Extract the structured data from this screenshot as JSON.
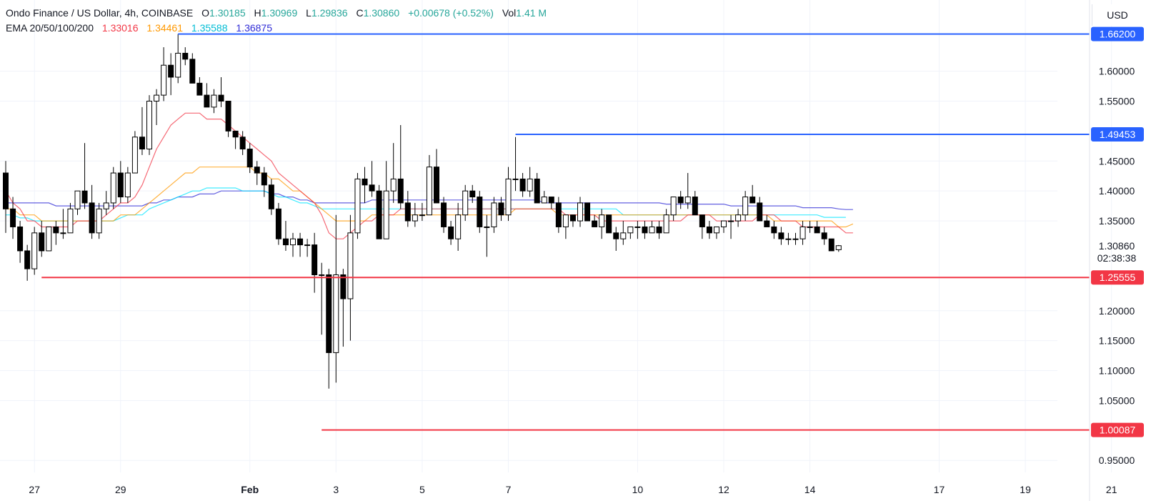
{
  "header": {
    "symbol": "Ondo Finance / US Dollar, 4h, COINBASE",
    "open_key": "O",
    "open": "1.30185",
    "high_key": "H",
    "high": "1.30969",
    "low_key": "L",
    "low": "1.29836",
    "close_key": "C",
    "close": "1.30860",
    "change": "+0.00678 (+0.52%)",
    "vol_key": "Vol",
    "vol": "1.41 M",
    "ema_label": "EMA 20/50/100/200",
    "ema_values": [
      "1.33016",
      "1.34461",
      "1.35588",
      "1.36875"
    ]
  },
  "currency": "USD",
  "colors": {
    "up": "#ffffff",
    "down": "#000000",
    "wick": "#000000",
    "ema20": "#f23645",
    "ema50": "#ff9800",
    "ema100": "#00e5ff",
    "ema200": "#2f2bd6",
    "level_blue": "#2962ff",
    "level_red": "#f23645"
  },
  "chart_data": {
    "type": "candlestick",
    "title": "Ondo Finance / US Dollar, 4h, COINBASE",
    "ylim": [
      0.93,
      1.695
    ],
    "y_ticks": [
      "1.60000",
      "1.55000",
      "1.45000",
      "1.40000",
      "1.35000",
      "1.20000",
      "1.15000",
      "1.10000",
      "1.05000",
      "0.95000"
    ],
    "y_tick_values": [
      1.6,
      1.55,
      1.45,
      1.4,
      1.35,
      1.2,
      1.15,
      1.1,
      1.05,
      0.95
    ],
    "x_ticks": [
      {
        "label": "27",
        "bar": 4
      },
      {
        "label": "29",
        "bar": 16
      },
      {
        "label": "Feb",
        "bar": 34
      },
      {
        "label": "3",
        "bar": 46
      },
      {
        "label": "5",
        "bar": 58
      },
      {
        "label": "7",
        "bar": 70
      },
      {
        "label": "10",
        "bar": 88
      },
      {
        "label": "12",
        "bar": 100
      },
      {
        "label": "14",
        "bar": 112
      },
      {
        "label": "17",
        "bar": 130
      },
      {
        "label": "19",
        "bar": 142
      },
      {
        "label": "21",
        "bar": 154
      }
    ],
    "bars_total": 162,
    "last_price": "1.30860",
    "countdown": "02:38:38",
    "candles": [
      [
        1.43,
        1.45,
        1.33,
        1.37
      ],
      [
        1.37,
        1.39,
        1.32,
        1.34
      ],
      [
        1.34,
        1.35,
        1.28,
        1.3
      ],
      [
        1.3,
        1.31,
        1.25,
        1.27
      ],
      [
        1.27,
        1.34,
        1.26,
        1.33
      ],
      [
        1.33,
        1.35,
        1.29,
        1.3
      ],
      [
        1.3,
        1.34,
        1.3,
        1.34
      ],
      [
        1.34,
        1.35,
        1.31,
        1.33
      ],
      [
        1.33,
        1.37,
        1.32,
        1.33
      ],
      [
        1.33,
        1.38,
        1.33,
        1.37
      ],
      [
        1.37,
        1.4,
        1.36,
        1.4
      ],
      [
        1.4,
        1.48,
        1.37,
        1.38
      ],
      [
        1.38,
        1.41,
        1.32,
        1.33
      ],
      [
        1.33,
        1.38,
        1.32,
        1.37
      ],
      [
        1.37,
        1.4,
        1.36,
        1.38
      ],
      [
        1.38,
        1.44,
        1.37,
        1.43
      ],
      [
        1.43,
        1.45,
        1.38,
        1.39
      ],
      [
        1.39,
        1.44,
        1.38,
        1.43
      ],
      [
        1.43,
        1.5,
        1.43,
        1.49
      ],
      [
        1.49,
        1.54,
        1.46,
        1.47
      ],
      [
        1.47,
        1.56,
        1.46,
        1.55
      ],
      [
        1.55,
        1.57,
        1.51,
        1.56
      ],
      [
        1.56,
        1.64,
        1.55,
        1.61
      ],
      [
        1.61,
        1.63,
        1.56,
        1.59
      ],
      [
        1.59,
        1.662,
        1.58,
        1.63
      ],
      [
        1.63,
        1.64,
        1.61,
        1.62
      ],
      [
        1.62,
        1.63,
        1.58,
        1.58
      ],
      [
        1.58,
        1.59,
        1.56,
        1.56
      ],
      [
        1.56,
        1.58,
        1.54,
        1.54
      ],
      [
        1.54,
        1.57,
        1.53,
        1.56
      ],
      [
        1.56,
        1.59,
        1.54,
        1.55
      ],
      [
        1.55,
        1.55,
        1.49,
        1.5
      ],
      [
        1.5,
        1.5,
        1.47,
        1.49
      ],
      [
        1.49,
        1.5,
        1.46,
        1.47
      ],
      [
        1.47,
        1.48,
        1.43,
        1.44
      ],
      [
        1.44,
        1.45,
        1.41,
        1.43
      ],
      [
        1.43,
        1.44,
        1.39,
        1.41
      ],
      [
        1.41,
        1.42,
        1.36,
        1.37
      ],
      [
        1.37,
        1.38,
        1.31,
        1.32
      ],
      [
        1.32,
        1.35,
        1.3,
        1.31
      ],
      [
        1.31,
        1.33,
        1.29,
        1.32
      ],
      [
        1.32,
        1.33,
        1.29,
        1.31
      ],
      [
        1.31,
        1.32,
        1.29,
        1.31
      ],
      [
        1.31,
        1.33,
        1.23,
        1.26
      ],
      [
        1.26,
        1.28,
        1.16,
        1.26
      ],
      [
        1.26,
        1.27,
        1.07,
        1.13
      ],
      [
        1.13,
        1.36,
        1.08,
        1.26
      ],
      [
        1.26,
        1.27,
        1.14,
        1.22
      ],
      [
        1.22,
        1.36,
        1.15,
        1.33
      ],
      [
        1.33,
        1.43,
        1.32,
        1.42
      ],
      [
        1.42,
        1.44,
        1.38,
        1.41
      ],
      [
        1.41,
        1.45,
        1.39,
        1.4
      ],
      [
        1.4,
        1.41,
        1.32,
        1.32
      ],
      [
        1.32,
        1.45,
        1.32,
        1.4
      ],
      [
        1.4,
        1.48,
        1.38,
        1.42
      ],
      [
        1.42,
        1.51,
        1.37,
        1.38
      ],
      [
        1.38,
        1.4,
        1.34,
        1.35
      ],
      [
        1.35,
        1.38,
        1.34,
        1.36
      ],
      [
        1.36,
        1.38,
        1.35,
        1.36
      ],
      [
        1.36,
        1.46,
        1.36,
        1.44
      ],
      [
        1.44,
        1.47,
        1.38,
        1.38
      ],
      [
        1.38,
        1.39,
        1.33,
        1.34
      ],
      [
        1.34,
        1.35,
        1.31,
        1.32
      ],
      [
        1.32,
        1.38,
        1.3,
        1.36
      ],
      [
        1.36,
        1.41,
        1.35,
        1.4
      ],
      [
        1.4,
        1.41,
        1.38,
        1.39
      ],
      [
        1.39,
        1.4,
        1.33,
        1.34
      ],
      [
        1.34,
        1.36,
        1.29,
        1.34
      ],
      [
        1.34,
        1.39,
        1.33,
        1.38
      ],
      [
        1.38,
        1.39,
        1.35,
        1.36
      ],
      [
        1.36,
        1.44,
        1.35,
        1.42
      ],
      [
        1.42,
        1.49,
        1.4,
        1.42
      ],
      [
        1.42,
        1.43,
        1.39,
        1.4
      ],
      [
        1.4,
        1.44,
        1.39,
        1.42
      ],
      [
        1.42,
        1.43,
        1.38,
        1.38
      ],
      [
        1.38,
        1.4,
        1.38,
        1.39
      ],
      [
        1.39,
        1.39,
        1.37,
        1.38
      ],
      [
        1.38,
        1.39,
        1.33,
        1.34
      ],
      [
        1.34,
        1.36,
        1.32,
        1.36
      ],
      [
        1.36,
        1.36,
        1.34,
        1.35
      ],
      [
        1.35,
        1.39,
        1.34,
        1.38
      ],
      [
        1.38,
        1.38,
        1.35,
        1.35
      ],
      [
        1.35,
        1.36,
        1.34,
        1.34
      ],
      [
        1.34,
        1.37,
        1.32,
        1.36
      ],
      [
        1.36,
        1.36,
        1.33,
        1.33
      ],
      [
        1.33,
        1.34,
        1.3,
        1.32
      ],
      [
        1.32,
        1.35,
        1.31,
        1.33
      ],
      [
        1.33,
        1.34,
        1.32,
        1.34
      ],
      [
        1.34,
        1.35,
        1.32,
        1.34
      ],
      [
        1.34,
        1.35,
        1.32,
        1.33
      ],
      [
        1.33,
        1.35,
        1.33,
        1.34
      ],
      [
        1.34,
        1.35,
        1.32,
        1.33
      ],
      [
        1.33,
        1.37,
        1.33,
        1.36
      ],
      [
        1.36,
        1.39,
        1.35,
        1.39
      ],
      [
        1.39,
        1.4,
        1.37,
        1.38
      ],
      [
        1.38,
        1.43,
        1.37,
        1.39
      ],
      [
        1.39,
        1.4,
        1.36,
        1.36
      ],
      [
        1.36,
        1.36,
        1.32,
        1.34
      ],
      [
        1.34,
        1.35,
        1.32,
        1.33
      ],
      [
        1.33,
        1.34,
        1.32,
        1.34
      ],
      [
        1.34,
        1.35,
        1.33,
        1.35
      ],
      [
        1.35,
        1.36,
        1.32,
        1.35
      ],
      [
        1.35,
        1.37,
        1.34,
        1.36
      ],
      [
        1.36,
        1.4,
        1.35,
        1.39
      ],
      [
        1.39,
        1.41,
        1.38,
        1.38
      ],
      [
        1.38,
        1.39,
        1.35,
        1.35
      ],
      [
        1.35,
        1.36,
        1.34,
        1.34
      ],
      [
        1.34,
        1.35,
        1.32,
        1.33
      ],
      [
        1.33,
        1.34,
        1.31,
        1.32
      ],
      [
        1.32,
        1.33,
        1.31,
        1.32
      ],
      [
        1.32,
        1.33,
        1.31,
        1.32
      ],
      [
        1.32,
        1.35,
        1.31,
        1.34
      ],
      [
        1.34,
        1.35,
        1.33,
        1.34
      ],
      [
        1.34,
        1.35,
        1.33,
        1.33
      ],
      [
        1.33,
        1.34,
        1.31,
        1.32
      ],
      [
        1.32,
        1.32,
        1.3,
        1.3
      ],
      [
        1.30185,
        1.30969,
        1.29836,
        1.3086
      ]
    ]
  },
  "ema_lines": {
    "ema20": [
      1.4,
      1.38,
      1.37,
      1.35,
      1.35,
      1.34,
      1.34,
      1.34,
      1.34,
      1.34,
      1.35,
      1.35,
      1.35,
      1.35,
      1.36,
      1.37,
      1.38,
      1.38,
      1.39,
      1.41,
      1.44,
      1.47,
      1.49,
      1.51,
      1.52,
      1.53,
      1.53,
      1.53,
      1.52,
      1.52,
      1.52,
      1.51,
      1.5,
      1.49,
      1.48,
      1.47,
      1.46,
      1.45,
      1.43,
      1.42,
      1.41,
      1.4,
      1.39,
      1.38,
      1.36,
      1.33,
      1.32,
      1.32,
      1.33,
      1.34,
      1.35,
      1.35,
      1.36,
      1.36,
      1.36,
      1.37,
      1.37,
      1.37,
      1.37,
      1.37,
      1.37,
      1.37,
      1.37,
      1.37,
      1.37,
      1.37,
      1.37,
      1.37,
      1.37,
      1.37,
      1.37,
      1.37,
      1.37,
      1.37,
      1.37,
      1.37,
      1.37,
      1.37,
      1.36,
      1.36,
      1.36,
      1.36,
      1.36,
      1.35,
      1.35,
      1.35,
      1.35,
      1.35,
      1.35,
      1.35,
      1.35,
      1.35,
      1.35,
      1.35,
      1.35,
      1.36,
      1.36,
      1.36,
      1.36,
      1.35,
      1.35,
      1.35,
      1.35,
      1.35,
      1.35,
      1.36,
      1.36,
      1.36,
      1.35,
      1.35,
      1.35,
      1.34,
      1.34,
      1.34,
      1.34,
      1.34,
      1.34,
      1.33,
      1.33
    ],
    "ema50": [
      1.37,
      1.37,
      1.36,
      1.36,
      1.36,
      1.35,
      1.35,
      1.35,
      1.35,
      1.35,
      1.35,
      1.35,
      1.35,
      1.35,
      1.35,
      1.35,
      1.36,
      1.36,
      1.36,
      1.37,
      1.38,
      1.39,
      1.4,
      1.41,
      1.42,
      1.43,
      1.43,
      1.44,
      1.44,
      1.44,
      1.44,
      1.44,
      1.44,
      1.44,
      1.44,
      1.43,
      1.43,
      1.42,
      1.42,
      1.41,
      1.4,
      1.4,
      1.39,
      1.38,
      1.37,
      1.36,
      1.35,
      1.35,
      1.35,
      1.35,
      1.35,
      1.36,
      1.36,
      1.36,
      1.36,
      1.36,
      1.36,
      1.36,
      1.36,
      1.36,
      1.36,
      1.36,
      1.36,
      1.36,
      1.36,
      1.36,
      1.36,
      1.36,
      1.36,
      1.36,
      1.36,
      1.37,
      1.37,
      1.37,
      1.37,
      1.37,
      1.37,
      1.36,
      1.36,
      1.36,
      1.36,
      1.36,
      1.36,
      1.36,
      1.36,
      1.36,
      1.36,
      1.36,
      1.36,
      1.36,
      1.36,
      1.36,
      1.36,
      1.36,
      1.36,
      1.36,
      1.36,
      1.36,
      1.36,
      1.36,
      1.36,
      1.36,
      1.36,
      1.36,
      1.36,
      1.36,
      1.36,
      1.35,
      1.35,
      1.35,
      1.35,
      1.35,
      1.35,
      1.35,
      1.35,
      1.35,
      1.34,
      1.34,
      1.345
    ],
    "ema100": [
      1.36,
      1.36,
      1.355,
      1.355,
      1.35,
      1.35,
      1.35,
      1.35,
      1.35,
      1.35,
      1.35,
      1.35,
      1.35,
      1.35,
      1.35,
      1.35,
      1.355,
      1.36,
      1.36,
      1.36,
      1.37,
      1.375,
      1.38,
      1.385,
      1.39,
      1.395,
      1.4,
      1.4,
      1.405,
      1.405,
      1.405,
      1.405,
      1.405,
      1.4,
      1.4,
      1.4,
      1.4,
      1.395,
      1.39,
      1.39,
      1.385,
      1.38,
      1.38,
      1.375,
      1.37,
      1.37,
      1.37,
      1.37,
      1.37,
      1.37,
      1.37,
      1.37,
      1.37,
      1.37,
      1.37,
      1.37,
      1.37,
      1.37,
      1.37,
      1.37,
      1.37,
      1.37,
      1.37,
      1.37,
      1.37,
      1.37,
      1.37,
      1.37,
      1.37,
      1.37,
      1.37,
      1.37,
      1.37,
      1.37,
      1.37,
      1.37,
      1.37,
      1.37,
      1.37,
      1.37,
      1.37,
      1.37,
      1.37,
      1.37,
      1.37,
      1.37,
      1.36,
      1.36,
      1.36,
      1.36,
      1.36,
      1.36,
      1.36,
      1.36,
      1.36,
      1.36,
      1.36,
      1.36,
      1.36,
      1.36,
      1.36,
      1.36,
      1.36,
      1.36,
      1.36,
      1.36,
      1.36,
      1.36,
      1.36,
      1.36,
      1.36,
      1.36,
      1.36,
      1.36,
      1.356,
      1.356,
      1.356,
      1.356
    ],
    "ema200": [
      1.38,
      1.38,
      1.38,
      1.38,
      1.38,
      1.38,
      1.38,
      1.375,
      1.375,
      1.375,
      1.375,
      1.375,
      1.375,
      1.375,
      1.375,
      1.375,
      1.375,
      1.375,
      1.375,
      1.375,
      1.38,
      1.38,
      1.385,
      1.385,
      1.39,
      1.39,
      1.39,
      1.395,
      1.395,
      1.395,
      1.4,
      1.4,
      1.4,
      1.4,
      1.4,
      1.4,
      1.4,
      1.395,
      1.395,
      1.39,
      1.39,
      1.385,
      1.385,
      1.38,
      1.38,
      1.38,
      1.38,
      1.38,
      1.38,
      1.38,
      1.38,
      1.385,
      1.385,
      1.385,
      1.385,
      1.385,
      1.385,
      1.385,
      1.385,
      1.385,
      1.385,
      1.385,
      1.385,
      1.385,
      1.385,
      1.385,
      1.385,
      1.385,
      1.385,
      1.385,
      1.385,
      1.385,
      1.385,
      1.385,
      1.385,
      1.38,
      1.38,
      1.38,
      1.38,
      1.38,
      1.38,
      1.38,
      1.38,
      1.38,
      1.38,
      1.38,
      1.38,
      1.38,
      1.38,
      1.38,
      1.38,
      1.38,
      1.378,
      1.378,
      1.378,
      1.378,
      1.378,
      1.378,
      1.378,
      1.378,
      1.378,
      1.375,
      1.375,
      1.375,
      1.375,
      1.375,
      1.375,
      1.375,
      1.375,
      1.375,
      1.375,
      1.372,
      1.372,
      1.372,
      1.372,
      1.372,
      1.37,
      1.369,
      1.369
    ]
  },
  "levels": [
    {
      "price": 1.662,
      "label": "1.66200",
      "color": "level_blue",
      "start_bar": 24
    },
    {
      "price": 1.49453,
      "label": "1.49453",
      "color": "level_blue",
      "start_bar": 71
    },
    {
      "price": 1.25555,
      "label": "1.25555",
      "color": "level_red",
      "start_bar": 5
    },
    {
      "price": 1.00087,
      "label": "1.00087",
      "color": "level_red",
      "start_bar": 44
    }
  ]
}
